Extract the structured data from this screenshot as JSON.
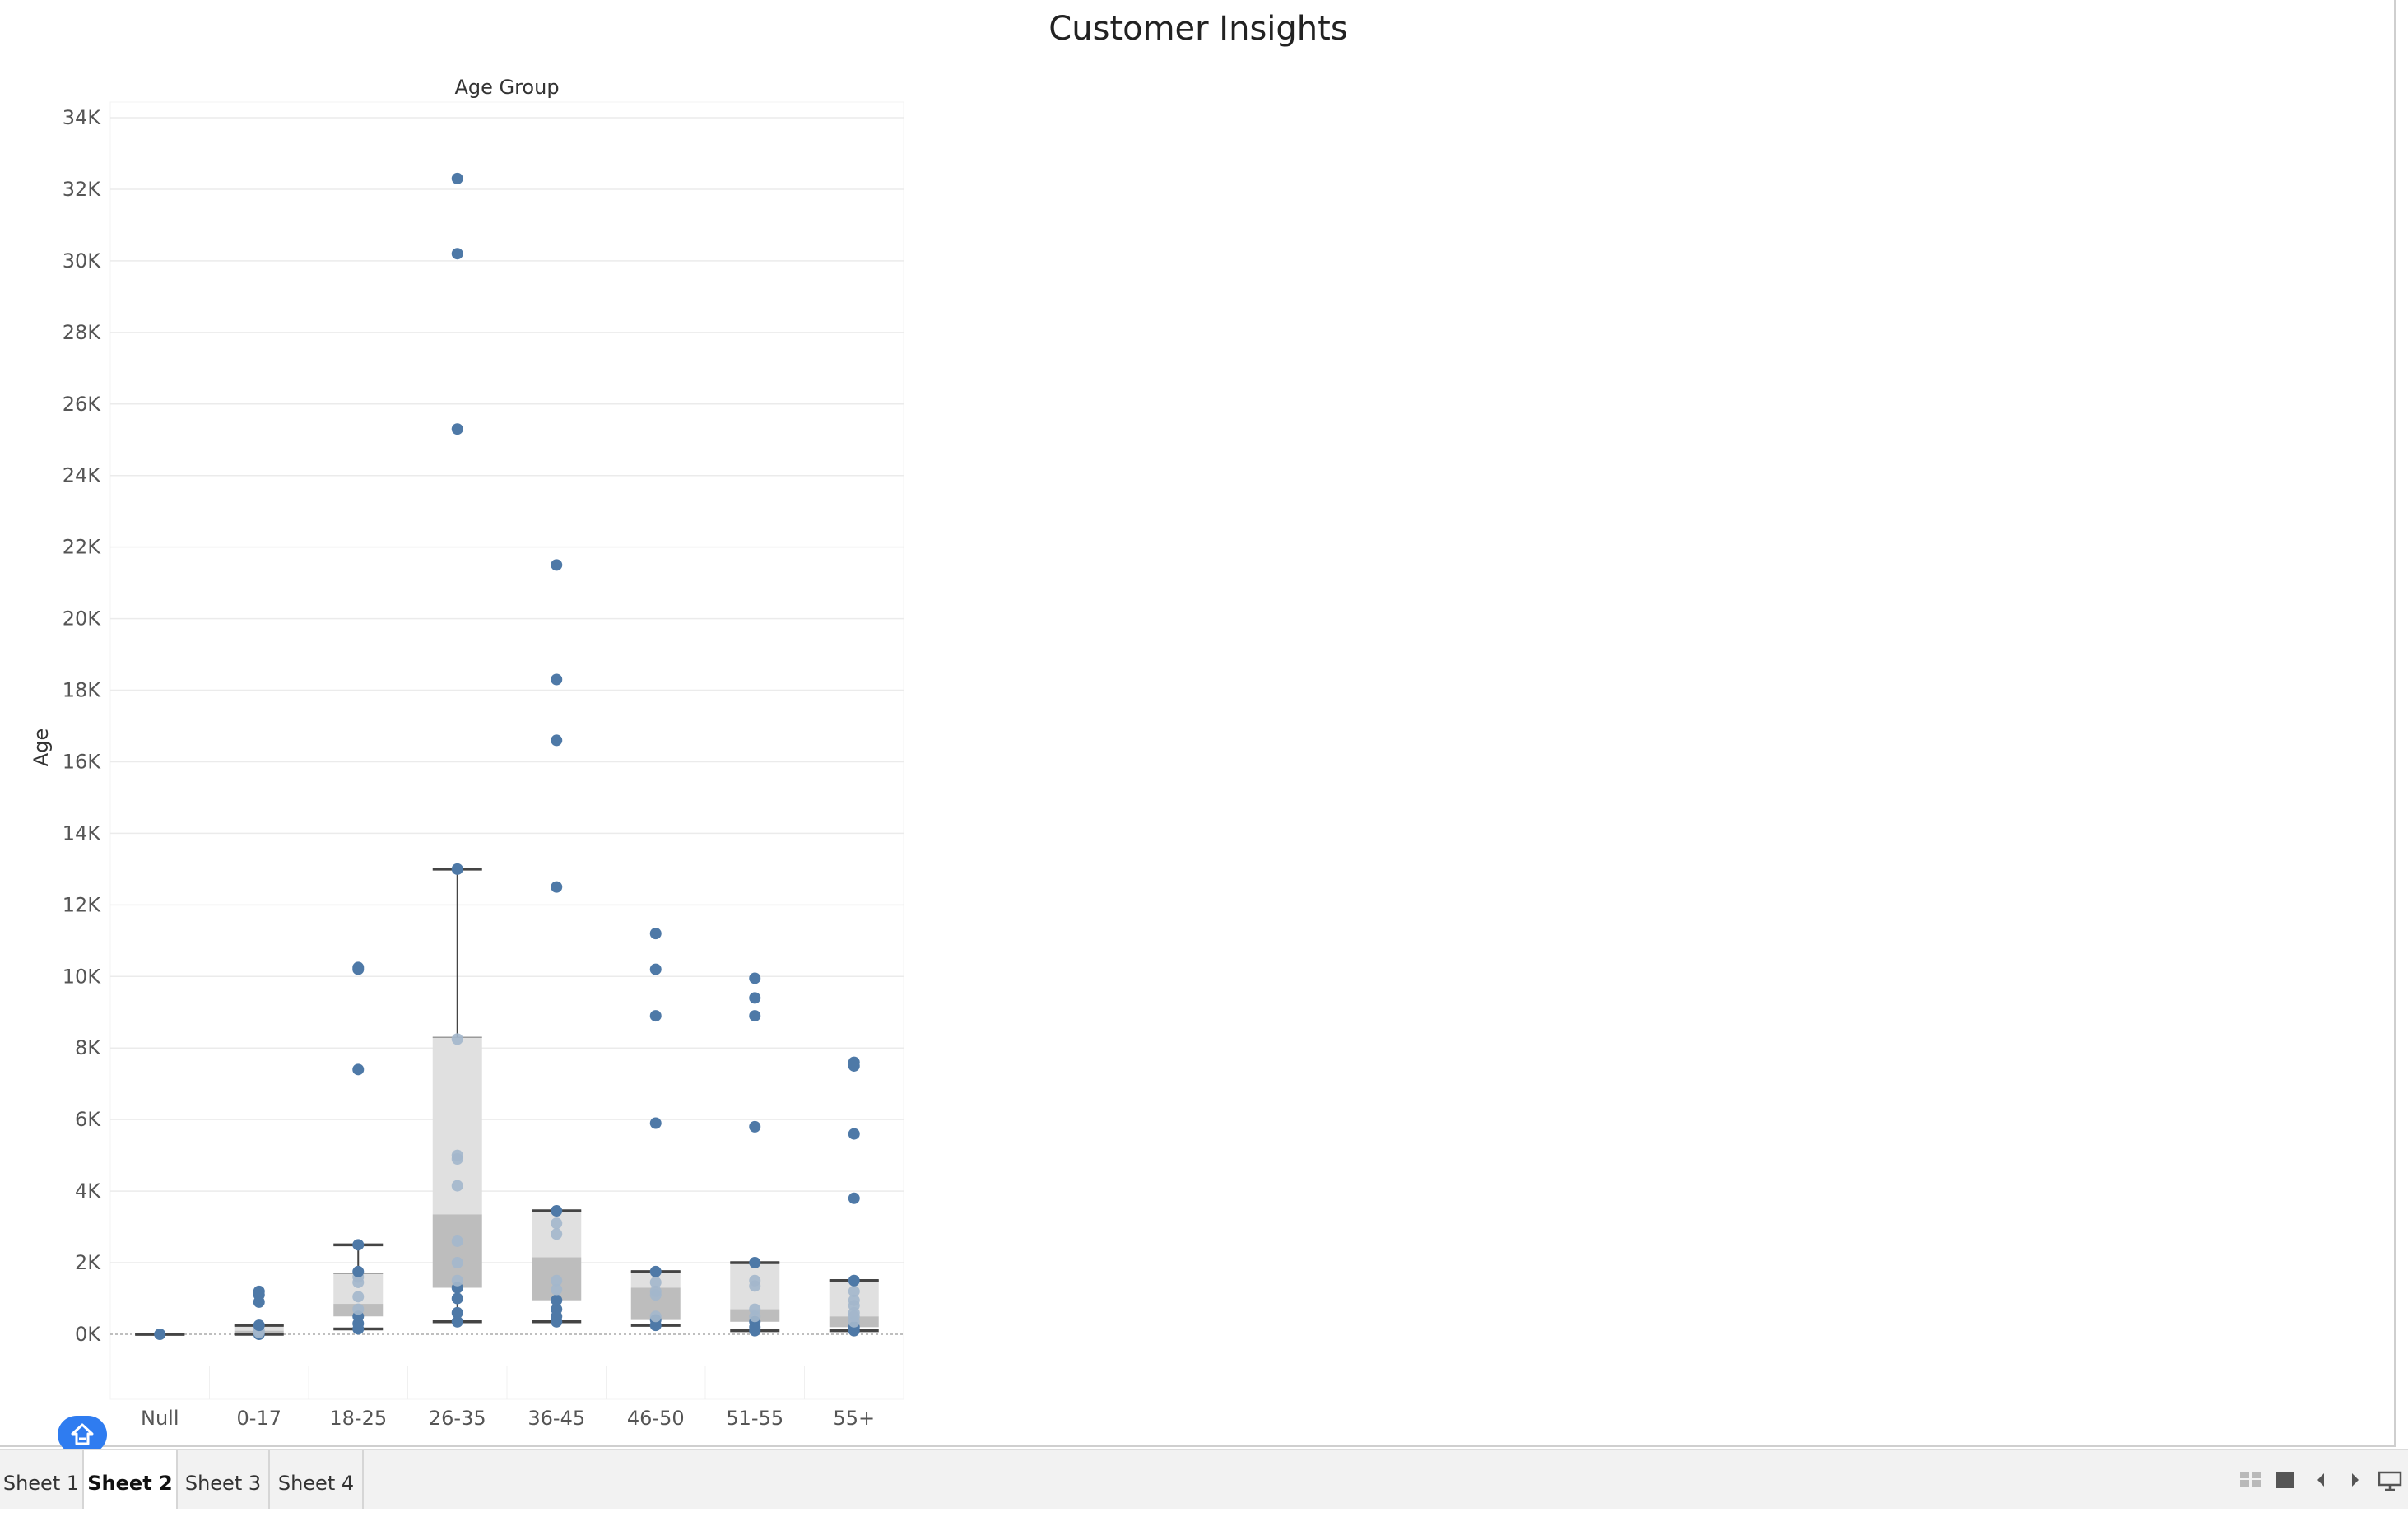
{
  "title": "Customer Insights",
  "tabs": [
    {
      "label": "Sheet 1",
      "active": false
    },
    {
      "label": "Sheet 2",
      "active": true
    },
    {
      "label": "Sheet 3",
      "active": false
    },
    {
      "label": "Sheet 4",
      "active": false
    }
  ],
  "icons": {
    "home": "home-icon",
    "grid_view": "grid-view-icon",
    "single_view": "single-view-icon",
    "prev": "previous-arrow-icon",
    "next": "next-arrow-icon",
    "present": "presentation-mode-icon"
  },
  "chart_data": {
    "type": "boxplot",
    "title": "Age Group",
    "xlabel": "Age Group",
    "ylabel": "Age",
    "ylim": [
      0,
      34000
    ],
    "yticks": [
      0,
      2000,
      4000,
      6000,
      8000,
      10000,
      12000,
      14000,
      16000,
      18000,
      20000,
      22000,
      24000,
      26000,
      28000,
      30000,
      32000,
      34000
    ],
    "ytick_labels": [
      "0K",
      "2K",
      "4K",
      "6K",
      "8K",
      "10K",
      "12K",
      "14K",
      "16K",
      "18K",
      "20K",
      "22K",
      "24K",
      "26K",
      "28K",
      "30K",
      "32K",
      "34K"
    ],
    "categories": [
      "Null",
      "0-17",
      "18-25",
      "26-35",
      "36-45",
      "46-50",
      "51-55",
      "55+"
    ],
    "boxes": [
      {
        "category": "Null",
        "whisker_low": 0,
        "q1": 0,
        "median": 0,
        "q3": 0,
        "whisker_high": 0,
        "points": [
          0
        ]
      },
      {
        "category": "0-17",
        "whisker_low": 0,
        "q1": 0,
        "median": 100,
        "q3": 250,
        "whisker_high": 250,
        "points": [
          0,
          50,
          100,
          250,
          900,
          1100,
          1200
        ]
      },
      {
        "category": "18-25",
        "whisker_low": 150,
        "q1": 500,
        "median": 850,
        "q3": 1700,
        "whisker_high": 2500,
        "points": [
          150,
          300,
          500,
          700,
          1050,
          1450,
          1600,
          1750,
          2500,
          7400,
          10200,
          10250
        ]
      },
      {
        "category": "26-35",
        "whisker_low": 350,
        "q1": 1300,
        "median": 3350,
        "q3": 8300,
        "whisker_high": 13000,
        "points": [
          350,
          600,
          1000,
          1300,
          1500,
          2000,
          2600,
          4150,
          4900,
          5000,
          8250,
          13000,
          25300,
          30200,
          32300
        ]
      },
      {
        "category": "36-45",
        "whisker_low": 350,
        "q1": 950,
        "median": 2150,
        "q3": 3450,
        "whisker_high": 3450,
        "points": [
          350,
          500,
          700,
          950,
          1250,
          1500,
          2800,
          3100,
          3450,
          12500,
          16600,
          18300,
          21500
        ]
      },
      {
        "category": "46-50",
        "whisker_low": 250,
        "q1": 400,
        "median": 1300,
        "q3": 1750,
        "whisker_high": 1750,
        "points": [
          250,
          400,
          500,
          1100,
          1200,
          1450,
          1750,
          5900,
          8900,
          10200,
          11200
        ]
      },
      {
        "category": "51-55",
        "whisker_low": 100,
        "q1": 350,
        "median": 700,
        "q3": 2000,
        "whisker_high": 2000,
        "points": [
          100,
          200,
          350,
          500,
          700,
          1350,
          1500,
          2000,
          5800,
          8900,
          9400,
          9950
        ]
      },
      {
        "category": "55+",
        "whisker_low": 100,
        "q1": 200,
        "median": 500,
        "q3": 1500,
        "whisker_high": 1500,
        "points": [
          100,
          200,
          350,
          500,
          600,
          800,
          950,
          1200,
          1500,
          3800,
          5600,
          7500,
          7600
        ]
      }
    ],
    "grid": true,
    "colors": {
      "point": "#4e79a7",
      "point_inside_box": "#a3b7cc",
      "box_upper": "#e0e0e0",
      "box_lower": "#bdbdbd",
      "whisker": "#444444",
      "gridline": "#ebebeb"
    }
  }
}
